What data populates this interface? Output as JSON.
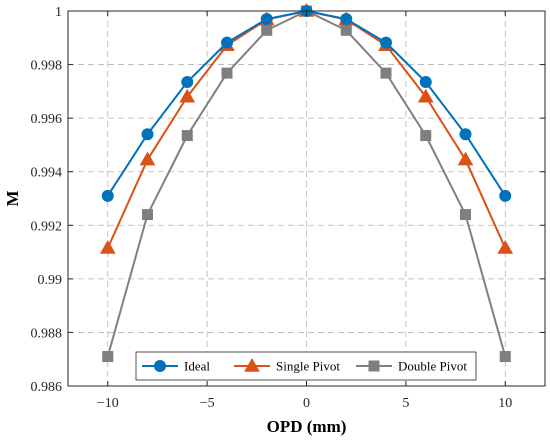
{
  "chart_data": {
    "type": "line",
    "title": "",
    "xlabel": "OPD (mm)",
    "ylabel": "M",
    "xlim": [
      -12,
      12
    ],
    "ylim": [
      0.986,
      1.0
    ],
    "xticks": [
      -10,
      -5,
      0,
      5,
      10
    ],
    "xtick_labels": [
      "−10",
      "−5",
      "0",
      "5",
      "10"
    ],
    "yticks": [
      0.986,
      0.988,
      0.99,
      0.992,
      0.994,
      0.996,
      0.998,
      1.0
    ],
    "ytick_labels": [
      "0.986",
      "0.988",
      "0.99",
      "0.992",
      "0.994",
      "0.996",
      "0.998",
      "1"
    ],
    "grid": true,
    "legend_position": "bottom",
    "x": [
      -10,
      -8,
      -6,
      -4,
      -2,
      0,
      2,
      4,
      6,
      8,
      10
    ],
    "series": [
      {
        "name": "Ideal",
        "color": "#0072BD",
        "marker": "circle",
        "values": [
          0.9931,
          0.9954,
          0.99735,
          0.99882,
          0.9997,
          1.0,
          0.9997,
          0.99882,
          0.99735,
          0.9954,
          0.9931
        ]
      },
      {
        "name": "Single Pivot",
        "color": "#D95319",
        "marker": "triangle",
        "values": [
          0.99115,
          0.99445,
          0.9968,
          0.99872,
          0.99968,
          1.0,
          0.99968,
          0.99872,
          0.9968,
          0.99445,
          0.99115
        ]
      },
      {
        "name": "Double Pivot",
        "color": "#7F7F7F",
        "marker": "square",
        "values": [
          0.9871,
          0.9924,
          0.99535,
          0.99768,
          0.99928,
          1.0,
          0.99928,
          0.99768,
          0.99535,
          0.9924,
          0.9871
        ]
      }
    ]
  }
}
